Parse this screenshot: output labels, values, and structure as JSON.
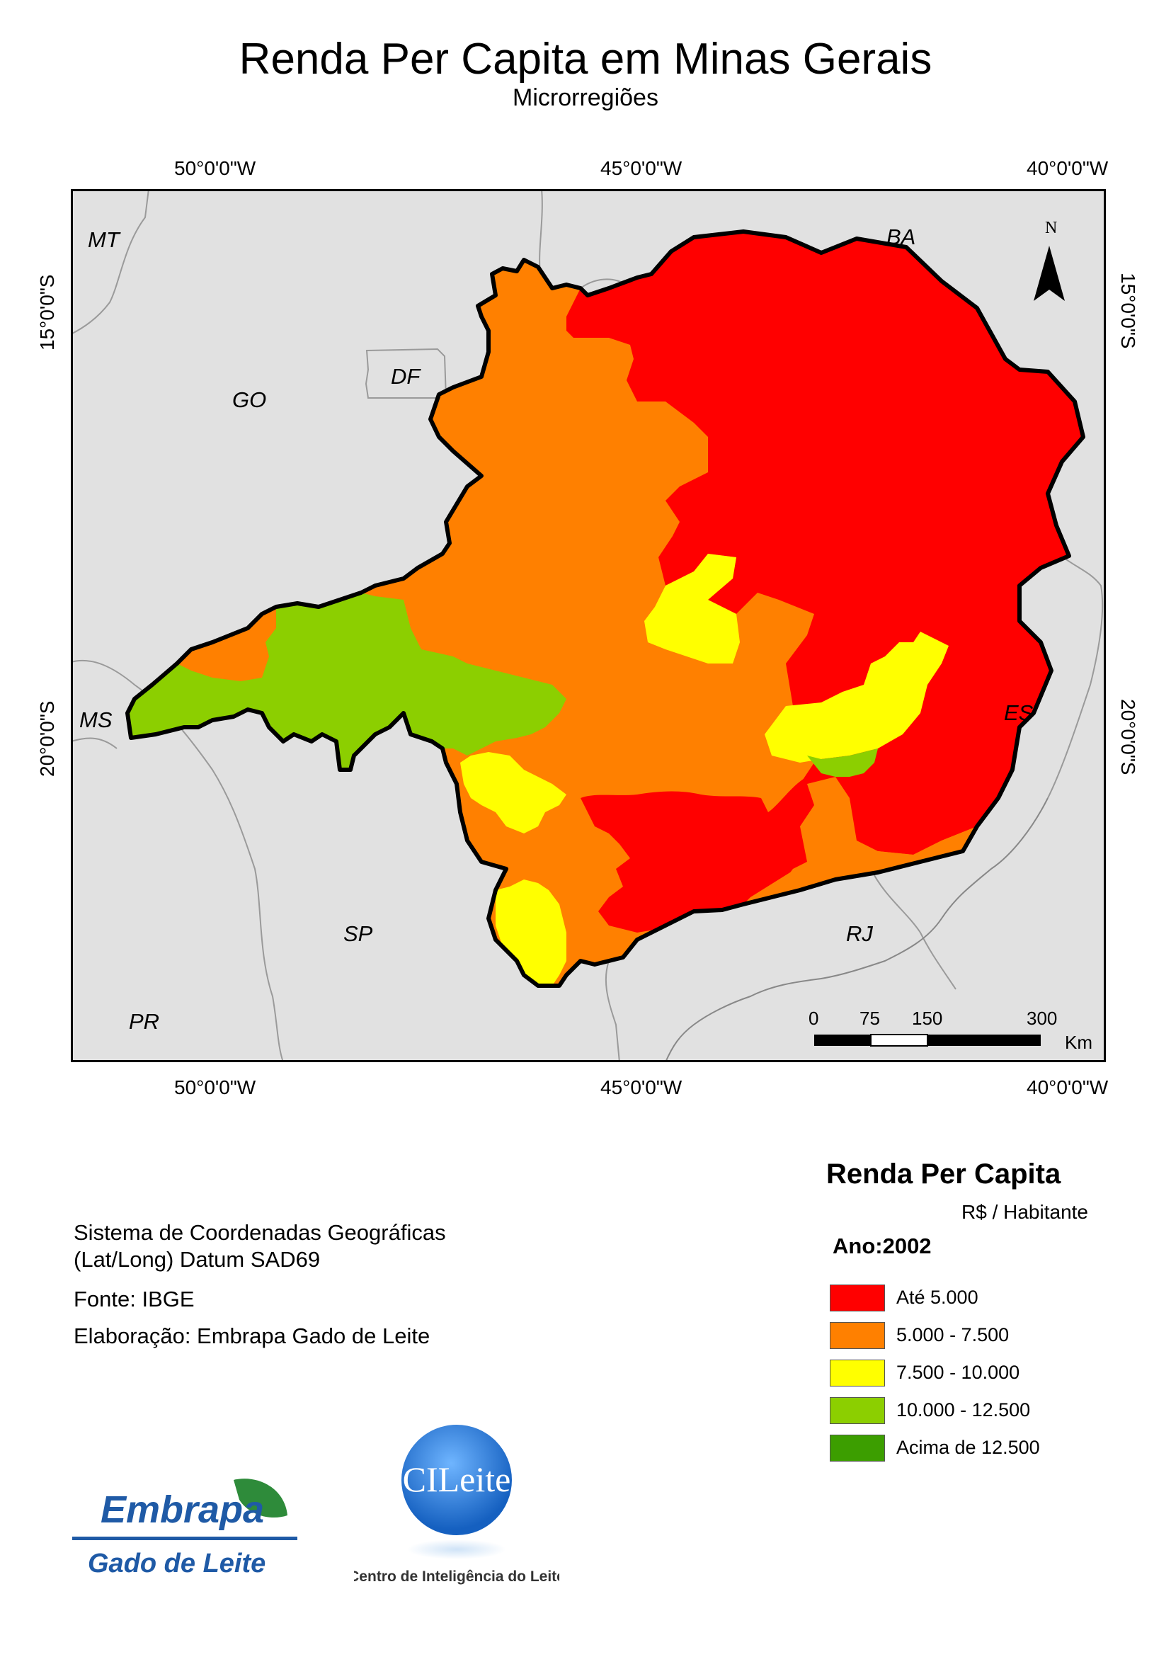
{
  "title": "Renda Per Capita em Minas Gerais",
  "subtitle": "Microrregiões",
  "axes": {
    "lon_top": [
      "50°0'0\"W",
      "45°0'0\"W",
      "40°0'0\"W"
    ],
    "lon_bottom": [
      "50°0'0\"W",
      "45°0'0\"W",
      "40°0'0\"W"
    ],
    "lat_left": [
      "15°0'0\"S",
      "20°0'0\"S"
    ],
    "lat_right": [
      "15°0'0\"S",
      "20°0'0\"S"
    ]
  },
  "map": {
    "state_labels": {
      "mt": "MT",
      "go": "GO",
      "df": "DF",
      "ba": "BA",
      "ms": "MS",
      "es": "ES",
      "sp": "SP",
      "rj": "RJ",
      "pr": "PR"
    },
    "north_label": "N",
    "scale": {
      "ticks": [
        "0",
        "75",
        "150",
        "300"
      ],
      "unit": "Km"
    },
    "colors": {
      "background": "#e1e1e1",
      "border": "#9a9a9a",
      "class_1": "#ff0000",
      "class_2": "#ff8000",
      "class_3": "#ffff00",
      "class_4": "#8ccf00",
      "class_5": "#3c9e00"
    }
  },
  "info": {
    "line1": "Sistema de Coordenadas Geográficas",
    "line2": "(Lat/Long) Datum SAD69",
    "source": "Fonte: IBGE",
    "author": "Elaboração: Embrapa Gado de Leite"
  },
  "legend": {
    "title": "Renda Per Capita",
    "unit": "R$ / Habitante",
    "year": "Ano:2002",
    "items": [
      {
        "label": "Até 5.000",
        "color": "#ff0000"
      },
      {
        "label": "5.000 - 7.500",
        "color": "#ff8000"
      },
      {
        "label": "7.500 - 10.000",
        "color": "#ffff00"
      },
      {
        "label": "10.000 - 12.500",
        "color": "#8ccf00"
      },
      {
        "label": "Acima de 12.500",
        "color": "#3c9e00"
      }
    ]
  },
  "logos": {
    "embrapa_name": "Embrapa",
    "embrapa_unit": "Gado de Leite",
    "cileite_name": "CILeite",
    "cileite_full": "Centro de Inteligência do Leite"
  }
}
